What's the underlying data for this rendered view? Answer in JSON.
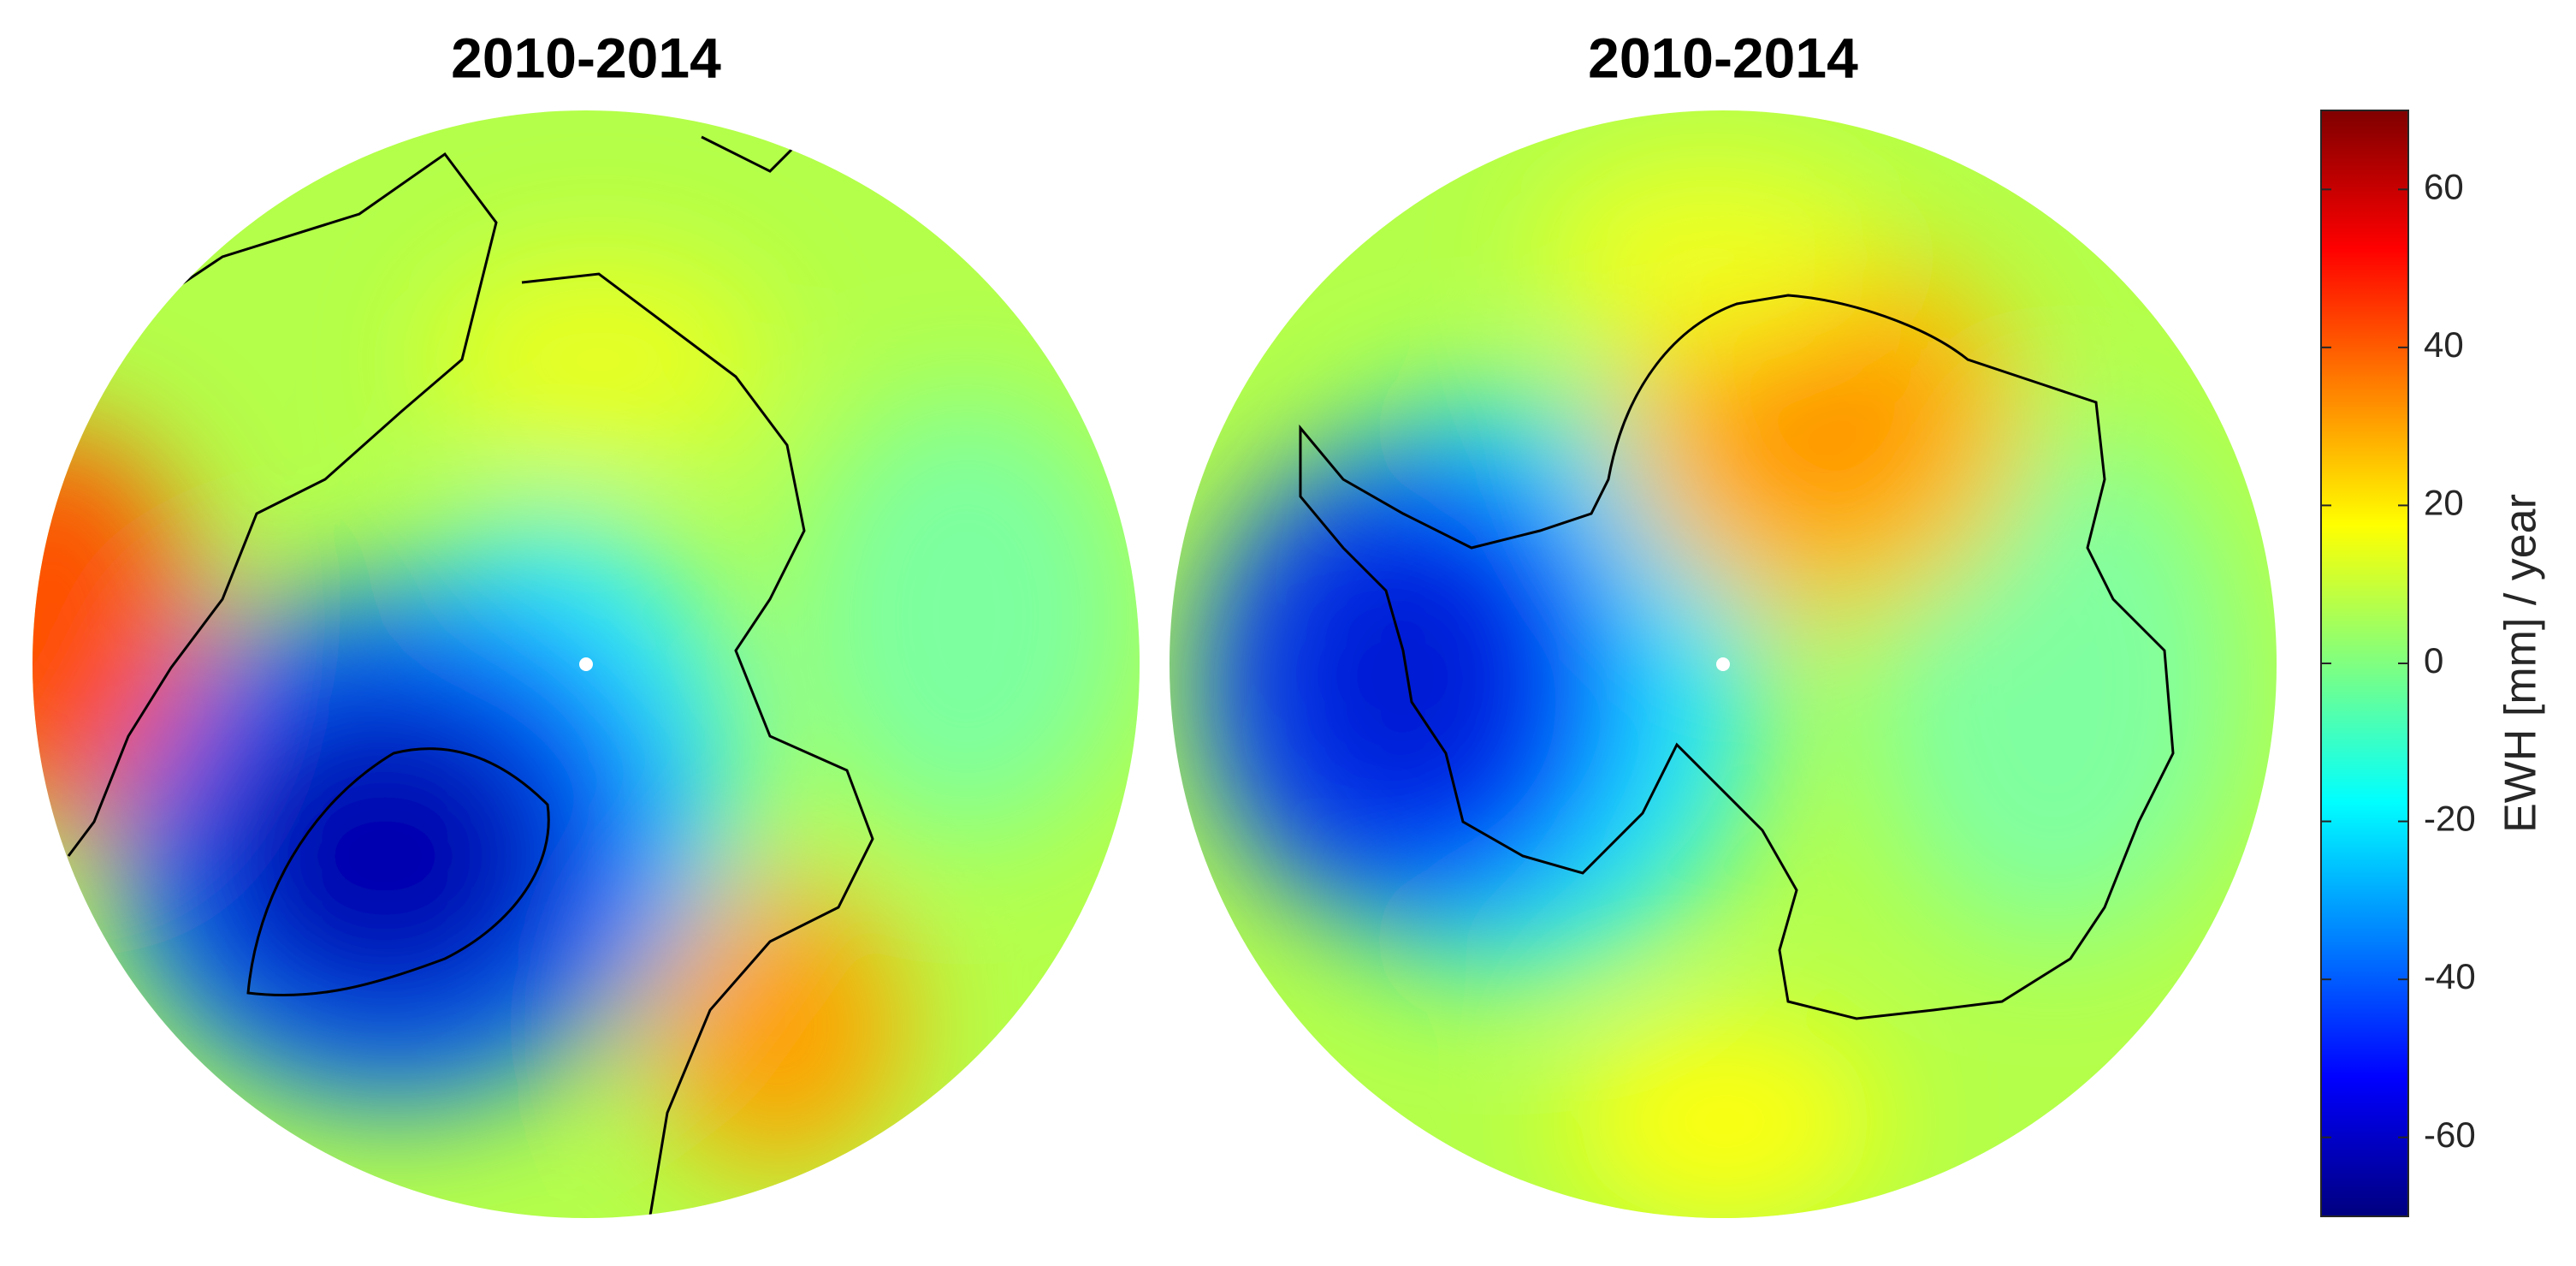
{
  "maps": [
    {
      "title": "2010-2014"
    },
    {
      "title": "2010-2014"
    }
  ],
  "colorbar": {
    "label": "EWH [mm] / year",
    "lim": [
      -70,
      70
    ],
    "ticks": [
      -60,
      -40,
      -20,
      0,
      20,
      40,
      60
    ],
    "colormap": "jet"
  }
}
